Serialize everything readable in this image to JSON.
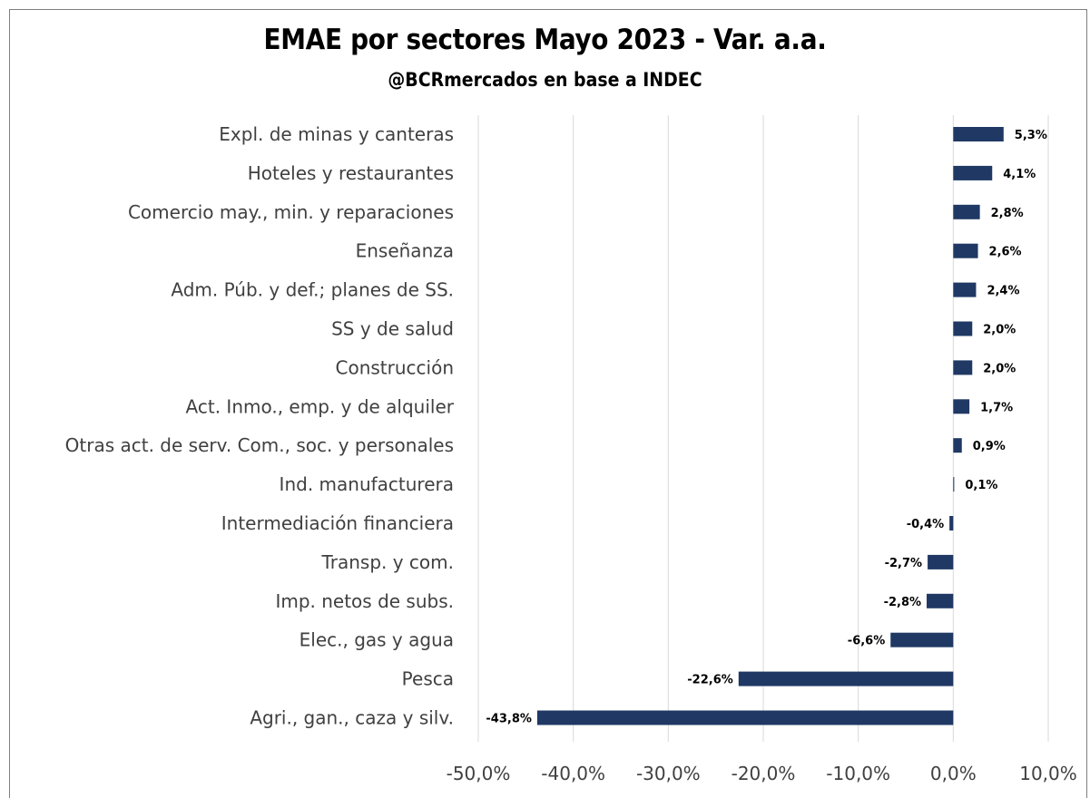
{
  "chart_data": {
    "type": "bar",
    "orientation": "horizontal",
    "title": "EMAE por sectores Mayo 2023 - Var. a.a.",
    "subtitle": "@BCRmercados en base a INDEC",
    "categories": [
      "Expl. de minas y canteras",
      "Hoteles y restaurantes",
      "Comercio may., min. y reparaciones",
      "Enseñanza",
      "Adm. Púb. y def.; planes de SS.",
      "SS y de salud",
      "Construcción",
      "Act. Inmo., emp. y de alquiler",
      "Otras act. de serv. Com., soc. y personales",
      "Ind. manufacturera",
      "Intermediación financiera",
      "Transp. y com.",
      "Imp. netos de subs.",
      "Elec., gas y agua",
      "Pesca",
      "Agri., gan., caza y silv."
    ],
    "values": [
      5.3,
      4.1,
      2.8,
      2.6,
      2.4,
      2.0,
      2.0,
      1.7,
      0.9,
      0.1,
      -0.4,
      -2.7,
      -2.8,
      -6.6,
      -22.6,
      -43.8
    ],
    "data_labels": [
      "5,3%",
      "4,1%",
      "2,8%",
      "2,6%",
      "2,4%",
      "2,0%",
      "2,0%",
      "1,7%",
      "0,9%",
      "0,1%",
      "-0,4%",
      "-2,7%",
      "-2,8%",
      "-6,6%",
      "-22,6%",
      "-43,8%"
    ],
    "xlim": [
      -50,
      10
    ],
    "x_ticks": [
      -50,
      -40,
      -30,
      -20,
      -10,
      0,
      10
    ],
    "x_tick_labels": [
      "-50,0%",
      "-40,0%",
      "-30,0%",
      "-20,0%",
      "-10,0%",
      "0,0%",
      "10,0%"
    ],
    "grid": true,
    "legend": "none",
    "bar_color": "#1f3864",
    "grid_color": "#d9d9d9"
  }
}
